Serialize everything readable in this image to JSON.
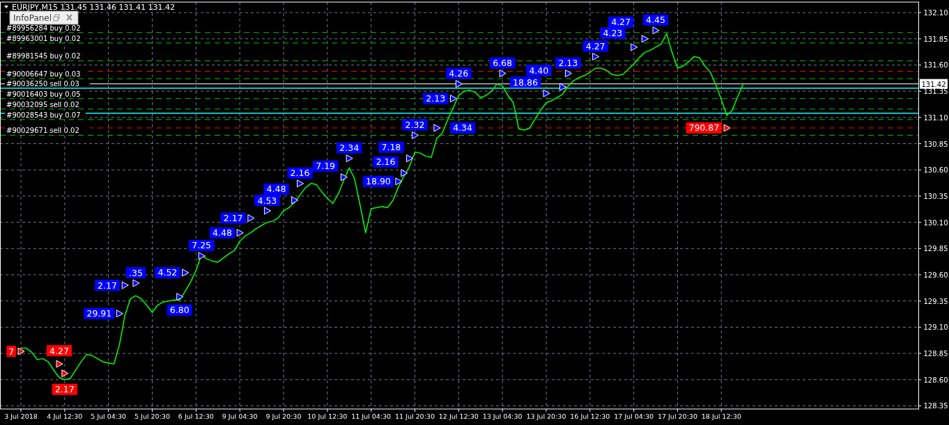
{
  "chart_data": {
    "type": "line",
    "title": "EURJPY,M15  131.45 131.46 131.41 131.42",
    "annotations": [
      "InfoPanel",
      "29.91",
      "2.17",
      ".35",
      "6.80",
      "4.52",
      "7.25",
      "4.48",
      "2.17",
      "4.53",
      "4.48",
      "2.16",
      "7.19",
      "2.34",
      "18.90",
      "2.16",
      "7.18",
      "2.32",
      "4.34",
      "2.13",
      "4.26",
      "6.68",
      "18.86",
      "4.40",
      "2.13",
      "4.27",
      "4.23",
      "4.27",
      "4.45",
      "7",
      "4.27",
      "2.17",
      "790.87"
    ],
    "categories": [
      "3 Jul 2018",
      null,
      null,
      null,
      null,
      null,
      null,
      null,
      "4 Jul 12:30",
      null,
      null,
      null,
      null,
      null,
      null,
      null,
      "5 Jul 04:30",
      null,
      null,
      null,
      null,
      null,
      null,
      null,
      "5 Jul 20:30",
      null,
      null,
      null,
      null,
      null,
      null,
      null,
      "6 Jul 12:30",
      null,
      null,
      null,
      null,
      null,
      null,
      null,
      "9 Jul 04:30",
      null,
      null,
      null,
      null,
      null,
      null,
      null,
      "9 Jul 20:30",
      null,
      null,
      null,
      null,
      null,
      null,
      null,
      "10 Jul 12:30",
      null,
      null,
      null,
      null,
      null,
      null,
      null,
      "11 Jul 04:30",
      null,
      null,
      null,
      null,
      null,
      null,
      null,
      "11 Jul 20:30",
      null,
      null,
      null,
      null,
      null,
      null,
      null,
      "12 Jul 12:30",
      null,
      null,
      null,
      null,
      null,
      null,
      null,
      "13 Jul 04:30",
      null,
      null,
      null,
      null,
      null,
      null,
      null,
      "13 Jul 20:30",
      null,
      null,
      null,
      null,
      null,
      null,
      null,
      "16 Jul 12:30",
      null,
      null,
      null,
      null,
      null,
      null,
      null,
      "17 Jul 04:30",
      null,
      null,
      null,
      null,
      null,
      null,
      null,
      "17 Jul 20:30",
      null,
      null,
      null,
      null,
      null,
      null,
      null,
      "18 Jul 12:30",
      null,
      null,
      null,
      null,
      null,
      null,
      null,
      null,
      null,
      null,
      null,
      null,
      null,
      null,
      null,
      null,
      null,
      null,
      null,
      null,
      null,
      null,
      null,
      null,
      null,
      null,
      null,
      null,
      null,
      null,
      null,
      null,
      null,
      null,
      null,
      null
    ],
    "series": [
      {
        "color": "#00ff00",
        "values": [
          128.9,
          128.9,
          128.86,
          128.79,
          128.8,
          128.77,
          128.69,
          128.62,
          128.6,
          128.61,
          128.69,
          128.77,
          128.84,
          128.83,
          128.8,
          128.77,
          128.76,
          128.75,
          128.93,
          129.21,
          129.37,
          129.4,
          129.37,
          129.31,
          129.24,
          129.31,
          129.34,
          129.35,
          129.36,
          129.36,
          129.44,
          129.53,
          129.64,
          129.79,
          129.75,
          129.73,
          129.72,
          129.76,
          129.8,
          129.83,
          129.92,
          129.97,
          130.0,
          130.04,
          130.07,
          130.1,
          130.11,
          130.14,
          130.21,
          130.24,
          130.29,
          130.36,
          130.43,
          130.47,
          130.46,
          130.39,
          130.33,
          130.28,
          130.37,
          130.5,
          130.62,
          130.51,
          130.26,
          130.0,
          130.23,
          130.24,
          130.25,
          130.24,
          130.31,
          130.44,
          130.54,
          130.63,
          130.77,
          130.76,
          130.73,
          130.72,
          130.9,
          130.95,
          131.08,
          131.19,
          131.31,
          131.35,
          131.36,
          131.34,
          131.29,
          131.31,
          131.35,
          131.42,
          131.4,
          131.31,
          131.24,
          130.99,
          130.98,
          131.0,
          131.09,
          131.17,
          131.24,
          131.26,
          131.29,
          131.32,
          131.4,
          131.45,
          131.48,
          131.5,
          131.53,
          131.57,
          131.57,
          131.55,
          131.51,
          131.5,
          131.51,
          131.56,
          131.61,
          131.67,
          131.72,
          131.74,
          131.77,
          131.8,
          131.9,
          131.72,
          131.57,
          131.59,
          131.63,
          131.68,
          131.67,
          131.59,
          131.53,
          131.41,
          131.27,
          131.12,
          131.17,
          131.3,
          131.42,
          null,
          null,
          null,
          null,
          null,
          null,
          null,
          null,
          null,
          null,
          null,
          null,
          null,
          null,
          null,
          null,
          null,
          null,
          null,
          null,
          null,
          null,
          null,
          null,
          null,
          null,
          null,
          null,
          null,
          null,
          null,
          null
        ]
      },
      {
        "type": "scatter",
        "color": "#0000ff",
        "marker": "triangle",
        "values": [
          null,
          null,
          null,
          null,
          null,
          null,
          null,
          null,
          null,
          null,
          null,
          null,
          null,
          null,
          null,
          null,
          null,
          null,
          129.23,
          129.5,
          null,
          129.52,
          null,
          null,
          null,
          null,
          null,
          null,
          null,
          129.39,
          129.62,
          null,
          null,
          129.78,
          null,
          null,
          null,
          null,
          null,
          null,
          130.0,
          null,
          130.14,
          null,
          null,
          130.21,
          null,
          null,
          null,
          null,
          130.31,
          130.47,
          null,
          null,
          null,
          null,
          null,
          null,
          null,
          130.53,
          130.71,
          null,
          null,
          null,
          null,
          null,
          null,
          null,
          null,
          130.49,
          130.57,
          130.71,
          130.93,
          null,
          null,
          null,
          131.0,
          null,
          null,
          131.28,
          131.42,
          null,
          null,
          null,
          null,
          null,
          null,
          null,
          131.52,
          null,
          null,
          null,
          null,
          null,
          null,
          null,
          131.33,
          null,
          null,
          131.39,
          131.52,
          null,
          null,
          null,
          null,
          131.68,
          null,
          null,
          null,
          null,
          null,
          null,
          131.77,
          null,
          131.85,
          null,
          131.93,
          null,
          null,
          null,
          null,
          null,
          null,
          null,
          null,
          null,
          null,
          null,
          null,
          null,
          null,
          null,
          null,
          null,
          null,
          null,
          null,
          null,
          null,
          null,
          null,
          null,
          null,
          null,
          null,
          null,
          null,
          null,
          null,
          null,
          null,
          null,
          null,
          null,
          null,
          null,
          null,
          null,
          null,
          null,
          null,
          null,
          null,
          null,
          null
        ]
      },
      {
        "type": "scatter",
        "color": "#ff0000",
        "marker": "triangle",
        "values": [
          128.87,
          null,
          null,
          null,
          null,
          null,
          null,
          128.75,
          128.66,
          null,
          null,
          null,
          null,
          null,
          null,
          null,
          null,
          null,
          null,
          null,
          null,
          null,
          null,
          null,
          null,
          null,
          null,
          null,
          null,
          null,
          null,
          null,
          null,
          null,
          null,
          null,
          null,
          null,
          null,
          null,
          null,
          null,
          null,
          null,
          null,
          null,
          null,
          null,
          null,
          null,
          null,
          null,
          null,
          null,
          null,
          null,
          null,
          null,
          null,
          null,
          null,
          null,
          null,
          null,
          null,
          null,
          null,
          null,
          null,
          null,
          null,
          null,
          null,
          null,
          null,
          null,
          null,
          null,
          null,
          null,
          null,
          null,
          null,
          null,
          null,
          null,
          null,
          null,
          null,
          null,
          null,
          null,
          null,
          null,
          null,
          null,
          null,
          null,
          null,
          null,
          null,
          null,
          null,
          null,
          null,
          null,
          null,
          null,
          null,
          null,
          null,
          null,
          null,
          null,
          null,
          null,
          null,
          null,
          null,
          null,
          null,
          null,
          null,
          null,
          null,
          null,
          null,
          null,
          null,
          131.0,
          null,
          null,
          null,
          null,
          null,
          null,
          null,
          null,
          null,
          null,
          null,
          null,
          null,
          null,
          null,
          null,
          null,
          null,
          null,
          null,
          null,
          null,
          null,
          null,
          null,
          null,
          null,
          null,
          null,
          null,
          null,
          null,
          null,
          null,
          null
        ]
      }
    ],
    "ylim": [
      128.32,
      132.2
    ],
    "yticks": [
      {
        "value": 128.35,
        "label": "128.35"
      },
      {
        "value": 128.6,
        "label": "128.60"
      },
      {
        "value": 128.85,
        "label": "128.85"
      },
      {
        "value": 129.1,
        "label": "129.10"
      },
      {
        "value": 129.35,
        "label": "129.35"
      },
      {
        "value": 129.6,
        "label": "129.60"
      },
      {
        "value": 129.85,
        "label": "129.85"
      },
      {
        "value": 130.1,
        "label": "130.10"
      },
      {
        "value": 130.35,
        "label": "130.35"
      },
      {
        "value": 130.6,
        "label": "130.60"
      },
      {
        "value": 130.85,
        "label": "130.85"
      },
      {
        "value": 131.1,
        "label": "131.10"
      },
      {
        "value": 131.35,
        "label": "131.35"
      },
      {
        "value": 131.6,
        "label": "131.60"
      },
      {
        "value": 131.85,
        "label": "131.85"
      },
      {
        "value": 132.1,
        "label": "132.10"
      }
    ],
    "grid": true,
    "ref_lines": [
      {
        "axis": "y",
        "value": 131.91,
        "label": "#89956284 buy 0.02",
        "color": "#00c000",
        "line_style": "dashed"
      },
      {
        "axis": "y",
        "value": 131.81,
        "label": "#89963001 buy 0.02",
        "color": "#00c000",
        "line_style": "dashed"
      },
      {
        "axis": "y",
        "value": 131.64,
        "label": "#89981545 buy 0.02",
        "color": "#00c000",
        "line_style": "dashed"
      },
      {
        "axis": "y",
        "value": 131.54,
        "color": "#ff0000",
        "line_style": "dashed"
      },
      {
        "axis": "y",
        "value": 131.47,
        "label": "#90006647 buy 0.03",
        "color": "#00c000",
        "line_style": "dashed"
      },
      {
        "axis": "y",
        "value": 131.42,
        "label": "131.42",
        "color": "#c0c0c0",
        "line_style": "solid"
      },
      {
        "axis": "y",
        "value": 131.38,
        "label": "#90036250 sell 0.03",
        "color": "#00ffff",
        "line_style": "solid"
      },
      {
        "axis": "y",
        "value": 131.28,
        "label": "#90016403 buy 0.05",
        "color": "#00c000",
        "line_style": "dashed"
      },
      {
        "axis": "y",
        "value": 131.18,
        "label": "#90032095 sell 0.02",
        "color": "#00c000",
        "line_style": "dashed"
      },
      {
        "axis": "y",
        "value": 131.14,
        "color": "#00ffff",
        "line_style": "solid"
      },
      {
        "axis": "y",
        "value": 131.08,
        "label": "#90028543 buy 0.07",
        "color": "#00c000",
        "line_style": "dashed"
      },
      {
        "axis": "y",
        "value": 131.0,
        "color": "#ff0000",
        "line_style": "dashed"
      },
      {
        "axis": "y",
        "value": 130.93,
        "label": "#90029671 sell 0.02",
        "color": "#00c000",
        "line_style": "dashed"
      }
    ]
  }
}
